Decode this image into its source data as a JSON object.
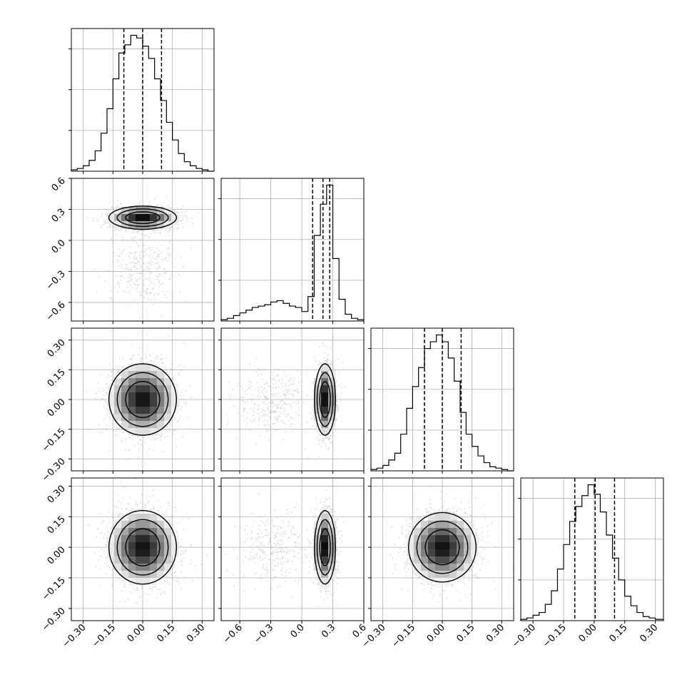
{
  "chart_data": {
    "type": "corner",
    "grid": true,
    "scatter_color": "#b8b8b8",
    "contour_color": "#000000",
    "density_colormap": [
      "#ffffff",
      "#000000"
    ],
    "quantile_line_style": "dashed",
    "parameters": [
      {
        "range": [
          -0.36,
          0.36
        ],
        "ticks": [
          -0.3,
          -0.15,
          0.0,
          0.15,
          0.3
        ],
        "tick_labels": [
          "−0.30",
          "−0.15",
          "0.00",
          "0.15",
          "0.30"
        ],
        "quantiles": [
          -0.095,
          0.0,
          0.095
        ],
        "hist": {
          "bins": [
            -0.36,
            -0.33,
            -0.3,
            -0.27,
            -0.24,
            -0.21,
            -0.18,
            -0.15,
            -0.12,
            -0.09,
            -0.06,
            -0.03,
            0.0,
            0.03,
            0.06,
            0.09,
            0.12,
            0.15,
            0.18,
            0.21,
            0.24,
            0.27,
            0.3,
            0.33,
            0.36
          ],
          "counts": [
            1,
            2,
            4,
            8,
            15,
            28,
            46,
            68,
            87,
            93,
            100,
            98,
            92,
            83,
            68,
            52,
            36,
            23,
            13,
            7,
            4,
            2,
            1,
            0
          ]
        }
      },
      {
        "range": [
          -0.78,
          0.6
        ],
        "ticks": [
          -0.6,
          -0.3,
          0.0,
          0.3,
          0.6
        ],
        "tick_labels": [
          "−0.6",
          "−0.3",
          "0.0",
          "0.3",
          "0.6"
        ],
        "quantiles": [
          0.105,
          0.205,
          0.27
        ],
        "hist": {
          "bins": [
            -0.78,
            -0.72,
            -0.66,
            -0.6,
            -0.54,
            -0.48,
            -0.42,
            -0.36,
            -0.3,
            -0.24,
            -0.18,
            -0.12,
            -0.06,
            0.0,
            0.06,
            0.12,
            0.18,
            0.24,
            0.3,
            0.36,
            0.42,
            0.48,
            0.54,
            0.6
          ],
          "counts": [
            1,
            2,
            4,
            6,
            8,
            10,
            11,
            12,
            14,
            15,
            13,
            11,
            10,
            7,
            18,
            63,
            86,
            100,
            46,
            16,
            5,
            2,
            1
          ]
        }
      },
      {
        "range": [
          -0.36,
          0.36
        ],
        "ticks": [
          -0.3,
          -0.15,
          0.0,
          0.15,
          0.3
        ],
        "tick_labels": [
          "−0.30",
          "−0.15",
          "0.00",
          "0.15",
          "0.30"
        ],
        "quantiles": [
          -0.09,
          0.0,
          0.095
        ],
        "hist": {
          "bins": [
            -0.36,
            -0.33,
            -0.3,
            -0.27,
            -0.24,
            -0.21,
            -0.18,
            -0.15,
            -0.12,
            -0.09,
            -0.06,
            -0.03,
            0.0,
            0.03,
            0.06,
            0.09,
            0.12,
            0.15,
            0.18,
            0.21,
            0.24,
            0.27,
            0.3,
            0.33,
            0.36
          ],
          "counts": [
            1,
            2,
            4,
            8,
            13,
            27,
            46,
            62,
            76,
            90,
            95,
            100,
            95,
            83,
            66,
            43,
            27,
            18,
            11,
            6,
            3,
            2,
            1,
            0
          ]
        }
      },
      {
        "range": [
          -0.36,
          0.34
        ],
        "ticks": [
          -0.3,
          -0.15,
          0.0,
          0.15,
          0.3
        ],
        "tick_labels": [
          "−0.30",
          "−0.15",
          "0.00",
          "0.15",
          "0.30"
        ],
        "quantiles": [
          -0.095,
          0.005,
          0.1
        ],
        "hist": {
          "bins": [
            -0.36,
            -0.33,
            -0.3,
            -0.27,
            -0.24,
            -0.21,
            -0.18,
            -0.15,
            -0.12,
            -0.09,
            -0.06,
            -0.03,
            0.0,
            0.03,
            0.06,
            0.09,
            0.12,
            0.15,
            0.18,
            0.21,
            0.24,
            0.27,
            0.3,
            0.34
          ],
          "counts": [
            1,
            2,
            4,
            6,
            12,
            22,
            38,
            56,
            73,
            84,
            92,
            100,
            93,
            80,
            63,
            46,
            30,
            18,
            11,
            6,
            3,
            2,
            1
          ]
        }
      }
    ],
    "pairs": [
      {
        "x": 0,
        "y": 1,
        "clusters": [
          {
            "mx": 0.0,
            "my": 0.22,
            "sx": 0.085,
            "sy": 0.055,
            "weight": 0.82
          },
          {
            "mx": 0.0,
            "my": -0.28,
            "sx": 0.085,
            "sy": 0.17,
            "weight": 0.18
          }
        ]
      },
      {
        "x": 0,
        "y": 2,
        "clusters": [
          {
            "mx": 0.0,
            "my": 0.0,
            "sx": 0.085,
            "sy": 0.09,
            "weight": 1.0
          }
        ]
      },
      {
        "x": 1,
        "y": 2,
        "clusters": [
          {
            "mx": 0.225,
            "my": 0.0,
            "sx": 0.05,
            "sy": 0.09,
            "weight": 0.82
          },
          {
            "mx": -0.28,
            "my": 0.0,
            "sx": 0.17,
            "sy": 0.09,
            "weight": 0.18
          }
        ]
      },
      {
        "x": 0,
        "y": 3,
        "clusters": [
          {
            "mx": 0.0,
            "my": 0.0,
            "sx": 0.085,
            "sy": 0.09,
            "weight": 1.0
          }
        ]
      },
      {
        "x": 1,
        "y": 3,
        "clusters": [
          {
            "mx": 0.225,
            "my": 0.0,
            "sx": 0.05,
            "sy": 0.09,
            "weight": 0.82
          },
          {
            "mx": -0.28,
            "my": 0.0,
            "sx": 0.17,
            "sy": 0.09,
            "weight": 0.18
          }
        ]
      },
      {
        "x": 2,
        "y": 3,
        "clusters": [
          {
            "mx": 0.0,
            "my": 0.0,
            "sx": 0.085,
            "sy": 0.085,
            "weight": 1.0
          }
        ]
      }
    ]
  }
}
